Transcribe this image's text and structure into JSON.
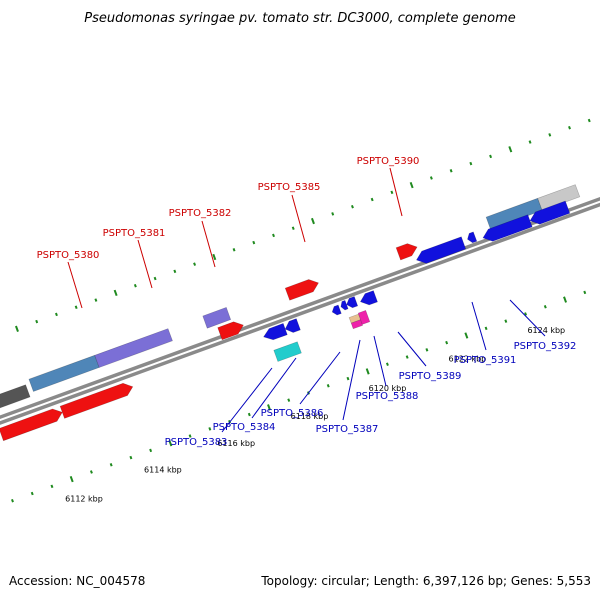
{
  "title": "Pseudomonas syringae pv. tomato str. DC3000, complete genome",
  "footer": {
    "accession": "Accession: NC_004578",
    "summary": "Topology: circular; Length: 6,397,126 bp; Genes: 5,553"
  },
  "colors": {
    "backbone": "#8a8a8a",
    "tick": "#1f8a1f",
    "upper_label": "#cc0000",
    "lower_label": "#0000bb",
    "red_gene": "#ee1111",
    "blue_gene": "#1111dd",
    "purple_gene": "#7b6fd6",
    "steel_gene": "#4f86b8",
    "gray_gene": "#c8c8c8",
    "dark_gene": "#555555",
    "cyan_gene": "#22cccc",
    "magenta_gene": "#ee22aa",
    "tan_gene": "#e8c090"
  },
  "scale": {
    "unit": "kbp",
    "labels": [
      "6112 kbp",
      "6114 kbp",
      "6116 kbp",
      "6118 kbp",
      "6120 kbp",
      "6122 kbp",
      "6124 kbp"
    ]
  },
  "upper_labels": [
    "PSPTO_5380",
    "PSPTO_5381",
    "PSPTO_5382",
    "PSPTO_5385",
    "PSPTO_5390"
  ],
  "lower_labels": [
    "PSPTO_5383",
    "PSPTO_5384",
    "PSPTO_5386",
    "PSPTO_5387",
    "PSPTO_5388",
    "PSPTO_5389",
    "PSPTO_5391",
    "PSPTO_5392"
  ]
}
